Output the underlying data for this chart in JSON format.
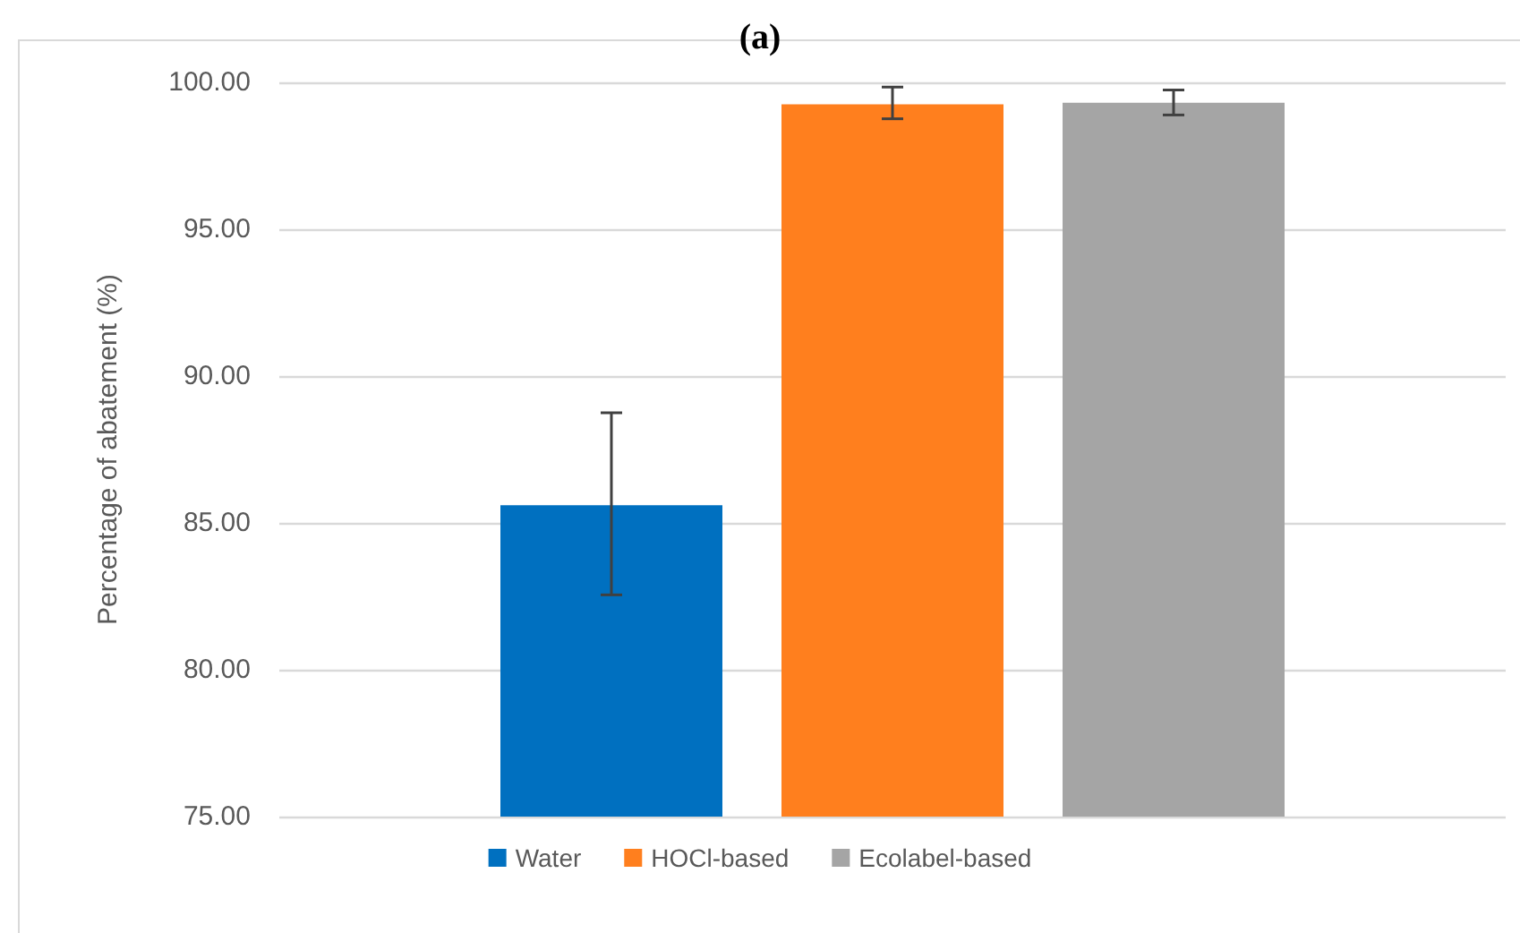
{
  "chart_data": {
    "type": "bar",
    "title": "(a)",
    "ylabel": "Percentage of abatement (%)",
    "categories": [
      null
    ],
    "series": [
      {
        "name": "Water",
        "color": "#0070c0",
        "values": [
          85.6
        ],
        "errors": [
          [
            82.55,
            88.75
          ]
        ]
      },
      {
        "name": "HOCl-based",
        "color": "#ff7f1e",
        "values": [
          99.25
        ],
        "errors": [
          [
            98.76,
            99.84
          ]
        ]
      },
      {
        "name": "Ecolabel-based",
        "color": "#a5a5a5",
        "values": [
          99.31
        ],
        "errors": [
          [
            98.89,
            99.74
          ]
        ]
      }
    ],
    "ylim": [
      75,
      100
    ],
    "yticks": [
      {
        "value": 75,
        "label": "75.00"
      },
      {
        "value": 80,
        "label": "80.00"
      },
      {
        "value": 85,
        "label": "85.00"
      },
      {
        "value": 90,
        "label": "90.00"
      },
      {
        "value": 95,
        "label": "95.00"
      },
      {
        "value": 100,
        "label": "100.00"
      }
    ],
    "grid": "y",
    "legend": "bottom"
  }
}
